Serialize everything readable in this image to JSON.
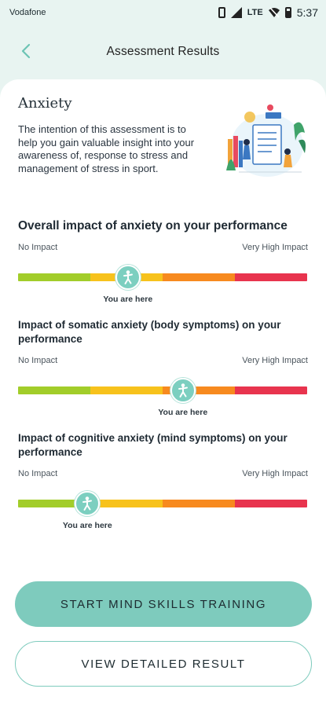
{
  "status_bar": {
    "carrier": "Vodafone",
    "network": "LTE",
    "time": "5:37"
  },
  "header": {
    "title": "Assessment Results"
  },
  "intro": {
    "title": "Anxiety",
    "text": "The intention of this assessment is to help you gain valuable insight into your awareness of, response to stress and management of stress in sport."
  },
  "scale_colors": [
    "#a2cd2a",
    "#f7c21c",
    "#f78a1f",
    "#e8344e"
  ],
  "sections": [
    {
      "title": "Overall impact of anxiety on your performance",
      "low_label": "No Impact",
      "high_label": "Very High Impact",
      "position_percent": 38,
      "marker_label": "You are here"
    },
    {
      "title": "Impact of somatic anxiety (body symptoms) on your performance",
      "low_label": "No Impact",
      "high_label": "Very High Impact",
      "position_percent": 57,
      "marker_label": "You are here"
    },
    {
      "title": "Impact of cognitive anxiety (mind symptoms) on your performance",
      "low_label": "No Impact",
      "high_label": "Very High Impact",
      "position_percent": 24,
      "marker_label": "You are here"
    }
  ],
  "buttons": {
    "primary": "START MIND SKILLS TRAINING",
    "secondary": "VIEW DETAILED RESULT"
  }
}
